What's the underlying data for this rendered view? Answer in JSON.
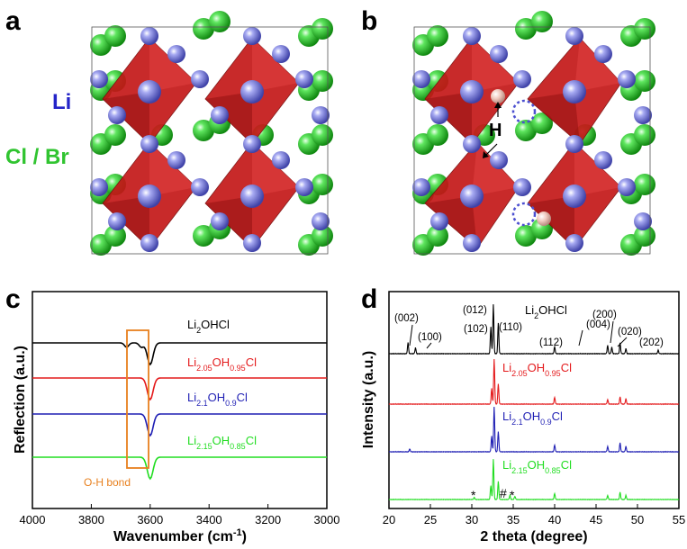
{
  "panels": {
    "a": {
      "letter": "a",
      "species_li": "Li",
      "species_cl": "Cl / Br"
    },
    "b": {
      "letter": "b",
      "label_h": "H"
    },
    "c": {
      "letter": "c",
      "ylabel": "Reflection (a.u.)",
      "xlabel": "Wavenumber (cm",
      "xlabel_sup": "-1",
      "xlabel_end": ")",
      "annotation": "O-H bond"
    },
    "d": {
      "letter": "d",
      "ylabel": "Intensity (a.u.)",
      "xlabel": "2 theta (degree)",
      "peak_labels": [
        "(002)",
        "(100)",
        "(012)",
        "(102)",
        "(110)",
        "(112)",
        "(004)",
        "(200)",
        "(020)",
        "(202)"
      ],
      "impurity_marks": [
        "*",
        "#",
        "*"
      ]
    }
  },
  "samples": [
    {
      "li": "2",
      "oh": "",
      "label_main": "Li",
      "sub1": "2",
      "mid": "OHCl",
      "sub2": "",
      "end": "",
      "color": "#000000"
    },
    {
      "li": "2.05",
      "oh": "0.95",
      "label_main": "Li",
      "sub1": "2.05",
      "mid": "OH",
      "sub2": "0.95",
      "end": "Cl",
      "color": "#e41a1c"
    },
    {
      "li": "2.1",
      "oh": "0.9",
      "label_main": "Li",
      "sub1": "2.1",
      "mid": "OH",
      "sub2": "0.9",
      "end": "Cl",
      "color": "#1f1fb4"
    },
    {
      "li": "2.15",
      "oh": "0.85",
      "label_main": "Li",
      "sub1": "2.15",
      "mid": "OH",
      "sub2": "0.85",
      "end": "Cl",
      "color": "#22dd22"
    }
  ],
  "chart_data": [
    {
      "type": "line",
      "panel": "c",
      "xlabel": "Wavenumber (cm-1)",
      "ylabel": "Reflection (a.u.)",
      "xlim": [
        4000,
        3000
      ],
      "x_ticks": [
        "4000",
        "3800",
        "3600",
        "3400",
        "3200",
        "3000"
      ],
      "y_ticks": [],
      "annotation": "O-H bond",
      "series": [
        {
          "name": "Li2OHCl",
          "color": "#000000",
          "features": [
            {
              "x": 3680,
              "depth": 0.2
            },
            {
              "x": 3630,
              "depth": 0.2
            },
            {
              "x": 3600,
              "depth": 1.0
            }
          ]
        },
        {
          "name": "Li2.05OH0.95Cl",
          "color": "#e41a1c",
          "features": [
            {
              "x": 3600,
              "depth": 1.0
            }
          ]
        },
        {
          "name": "Li2.1OH0.9Cl",
          "color": "#1f1fb4",
          "features": [
            {
              "x": 3600,
              "depth": 1.0
            }
          ]
        },
        {
          "name": "Li2.15OH0.85Cl",
          "color": "#22dd22",
          "features": [
            {
              "x": 3600,
              "depth": 1.0
            }
          ]
        }
      ]
    },
    {
      "type": "line",
      "panel": "d",
      "xlabel": "2 theta (degree)",
      "ylabel": "Intensity (a.u.)",
      "xlim": [
        20,
        55
      ],
      "x_ticks": [
        "20",
        "25",
        "30",
        "35",
        "40",
        "45",
        "50",
        "55"
      ],
      "series": [
        {
          "name": "Li2OHCl",
          "color": "#000000",
          "peaks": [
            [
              22.3,
              0.22
            ],
            [
              23.2,
              0.12
            ],
            [
              32.3,
              0.55
            ],
            [
              32.6,
              1.0
            ],
            [
              33.2,
              0.62
            ],
            [
              40.0,
              0.14
            ],
            [
              46.4,
              0.17
            ],
            [
              46.9,
              0.13
            ],
            [
              47.9,
              0.22
            ],
            [
              48.6,
              0.1
            ],
            [
              52.5,
              0.07
            ]
          ]
        },
        {
          "name": "Li2.05OH0.95Cl",
          "color": "#e41a1c",
          "peaks": [
            [
              32.4,
              0.35
            ],
            [
              32.7,
              1.0
            ],
            [
              33.2,
              0.45
            ],
            [
              40.0,
              0.15
            ],
            [
              46.4,
              0.1
            ],
            [
              47.9,
              0.16
            ],
            [
              48.6,
              0.12
            ]
          ]
        },
        {
          "name": "Li2.1OH0.9Cl",
          "color": "#1f1fb4",
          "peaks": [
            [
              22.5,
              0.06
            ],
            [
              32.4,
              0.35
            ],
            [
              32.7,
              1.0
            ],
            [
              33.2,
              0.45
            ],
            [
              40.0,
              0.15
            ],
            [
              46.4,
              0.12
            ],
            [
              47.9,
              0.2
            ],
            [
              48.6,
              0.12
            ]
          ]
        },
        {
          "name": "Li2.15OH0.85Cl",
          "color": "#22dd22",
          "peaks": [
            [
              30.3,
              0.05
            ],
            [
              32.3,
              0.35
            ],
            [
              32.6,
              1.0
            ],
            [
              33.2,
              0.45
            ],
            [
              34.6,
              0.1
            ],
            [
              35.2,
              0.08
            ],
            [
              40.0,
              0.15
            ],
            [
              46.4,
              0.1
            ],
            [
              47.9,
              0.18
            ],
            [
              48.6,
              0.1
            ]
          ]
        }
      ]
    }
  ],
  "colors": {
    "octahedron": "#c41818",
    "li_atom": "#7a7de0",
    "cl_atom": "#3ecf3e",
    "h_atom": "#f0d0c8",
    "vacancy": "#4b4fd0",
    "oh_box": "#e8801e"
  }
}
